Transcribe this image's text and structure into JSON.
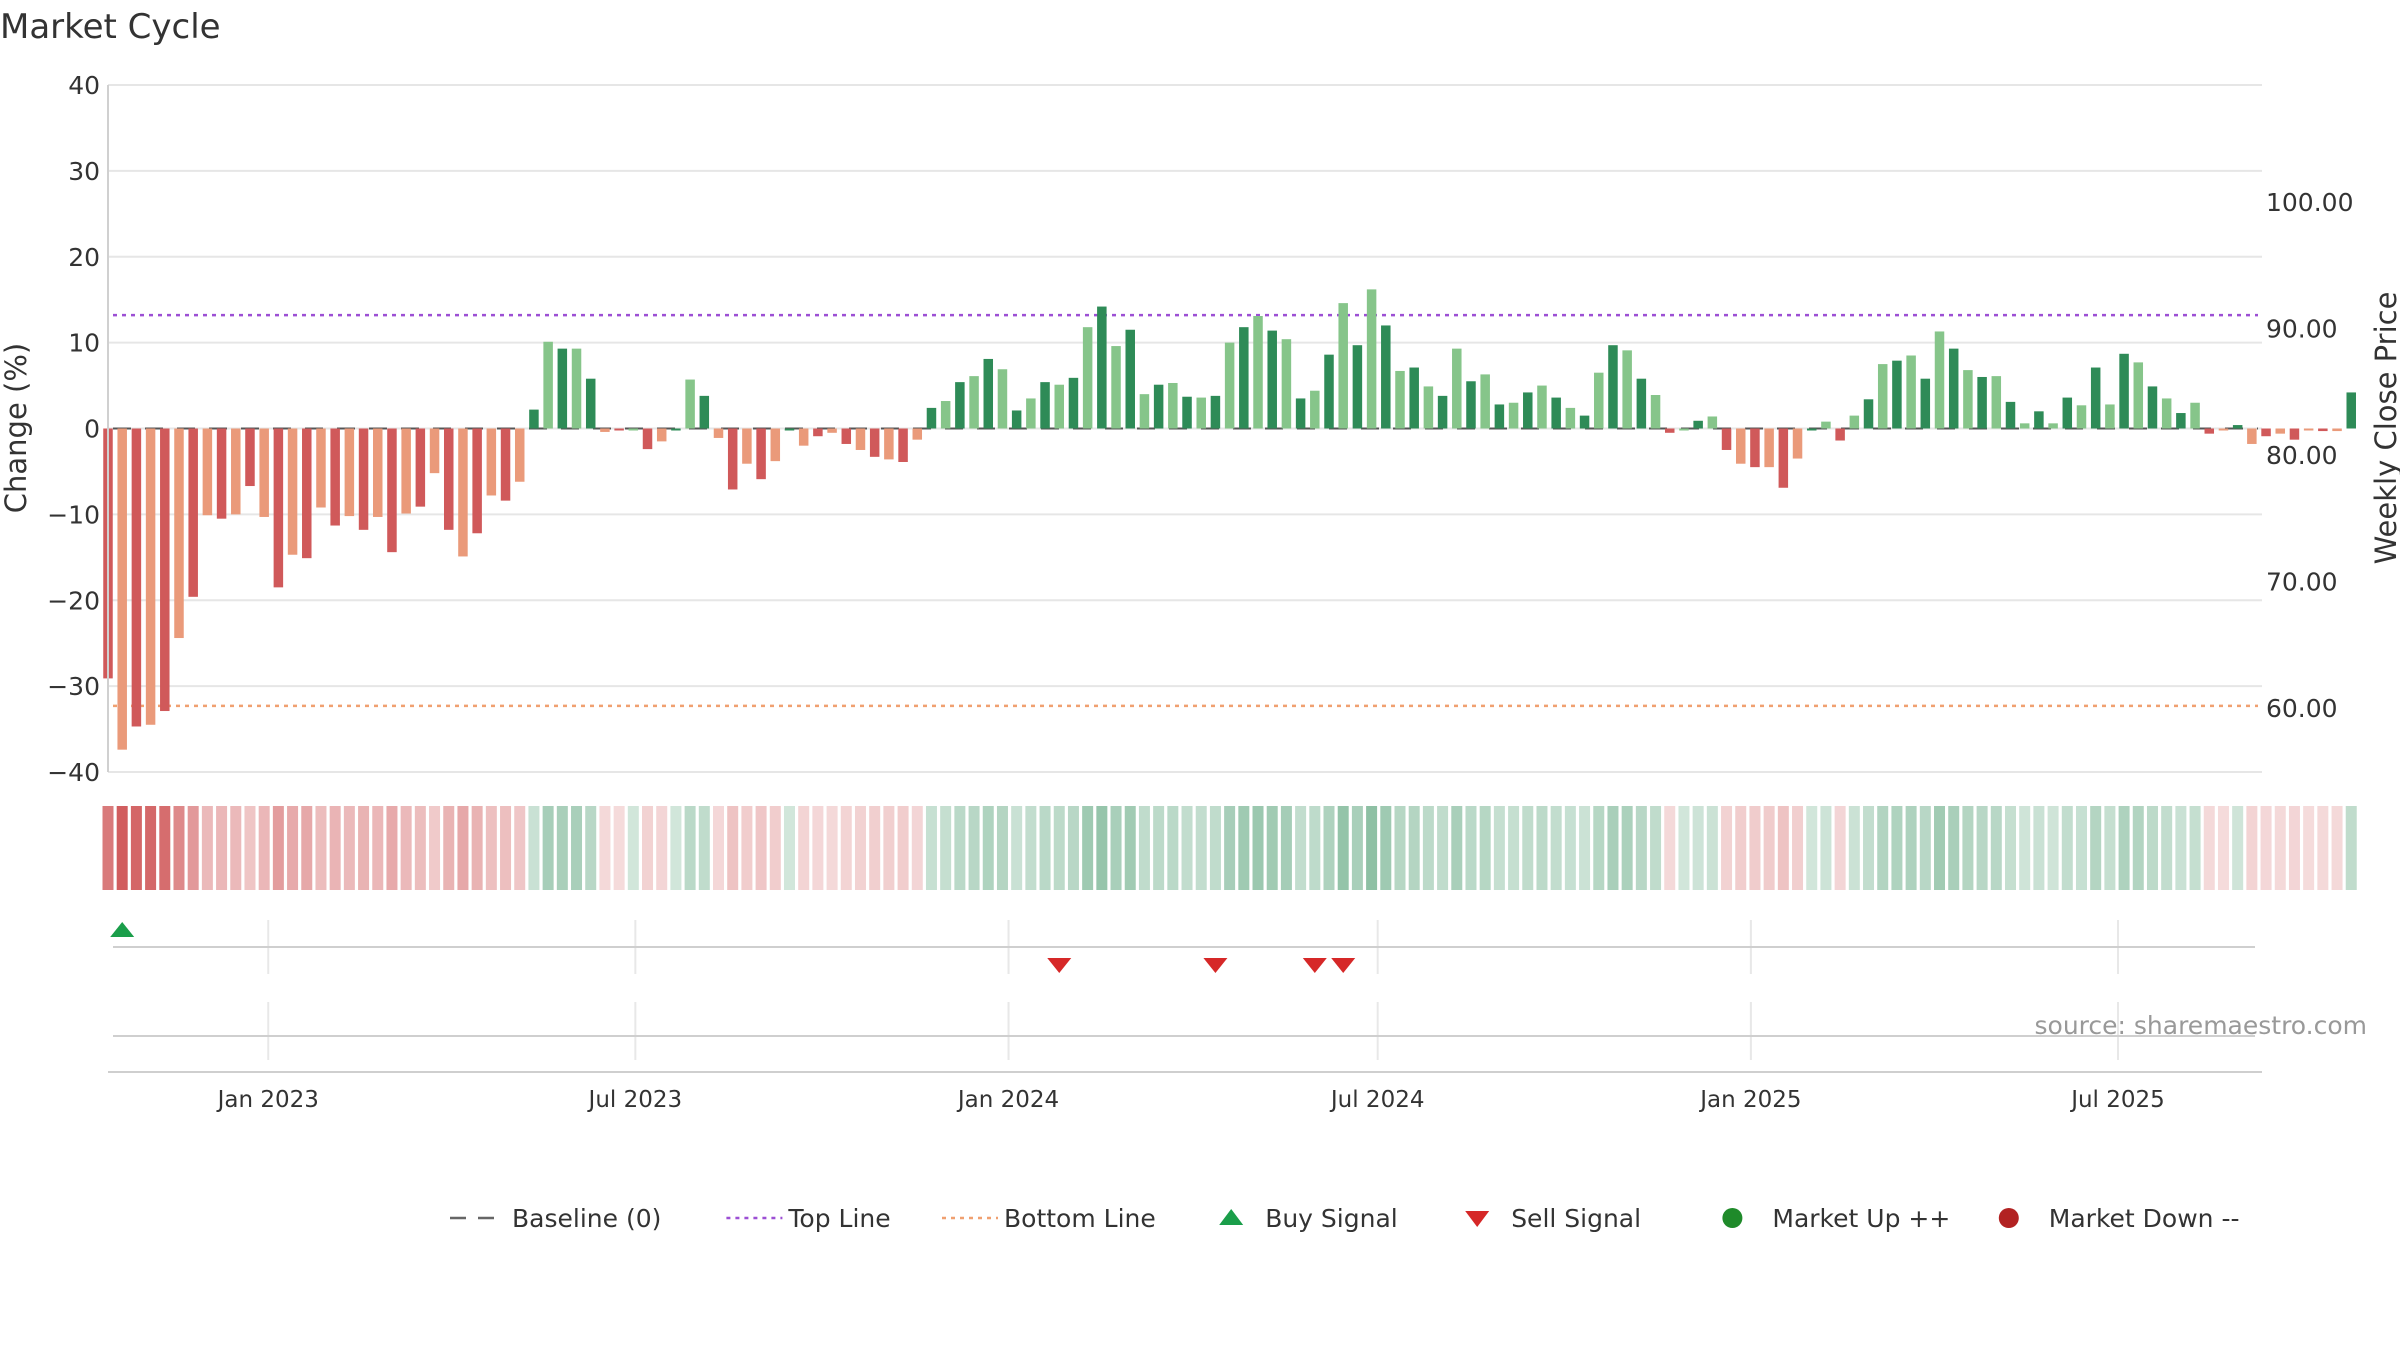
{
  "chart_data": {
    "type": "bar",
    "title": "Market Cycle",
    "ylabel": "Change (%)",
    "y2label": "Weekly Close Price",
    "ylim": [
      -40,
      40
    ],
    "y2lim": [
      55,
      110
    ],
    "yticks": [
      40,
      30,
      20,
      10,
      0,
      -10,
      -20,
      -30,
      -40
    ],
    "yticks_text": [
      "40",
      "30",
      "20",
      "10",
      "0",
      "−10",
      "−20",
      "−30",
      "−40"
    ],
    "y2ticks": [
      100,
      90,
      80,
      70,
      60
    ],
    "y2ticks_text": [
      "100.00",
      "90.00",
      "80.00",
      "70.00",
      "60.00"
    ],
    "x_start": "2022-10-14",
    "x_end": "2025-09-10",
    "x_ticks": [
      {
        "date": "2023-01-01",
        "label": "Jan 2023"
      },
      {
        "date": "2023-07-01",
        "label": "Jul 2023"
      },
      {
        "date": "2024-01-01",
        "label": "Jan 2024"
      },
      {
        "date": "2024-07-01",
        "label": "Jul 2024"
      },
      {
        "date": "2025-01-01",
        "label": "Jan 2025"
      },
      {
        "date": "2025-07-01",
        "label": "Jul 2025"
      }
    ],
    "first_bar_date": "2022-10-14",
    "bar_interval_days": 7,
    "values": [
      -29.1,
      -37.4,
      -34.7,
      -34.5,
      -32.9,
      -24.4,
      -19.6,
      -10.1,
      -10.5,
      -10,
      -6.7,
      -10.3,
      -18.5,
      -14.7,
      -15.1,
      -9.2,
      -11.3,
      -10.2,
      -11.8,
      -10.3,
      -14.4,
      -9.9,
      -9.1,
      -5.2,
      -11.8,
      -14.9,
      -12.2,
      -7.8,
      -8.4,
      -6.2,
      2.2,
      10.1,
      9.3,
      9.3,
      5.8,
      -0.4,
      -0.2,
      0,
      -2.4,
      -1.5,
      0,
      5.7,
      3.8,
      -1.1,
      -7.1,
      -4.1,
      -5.9,
      -3.8,
      0,
      -2,
      -0.9,
      -0.5,
      -1.8,
      -2.5,
      -3.3,
      -3.6,
      -3.9,
      -1.3,
      2.4,
      3.2,
      5.4,
      6.1,
      8.1,
      6.9,
      2.1,
      3.5,
      5.4,
      5.1,
      5.9,
      11.8,
      14.2,
      9.6,
      11.5,
      4,
      5.1,
      5.3,
      3.7,
      3.6,
      3.8,
      10,
      11.8,
      13.1,
      11.4,
      10.4,
      3.5,
      4.4,
      8.6,
      14.6,
      9.7,
      16.2,
      12,
      6.7,
      7.1,
      4.9,
      3.8,
      9.3,
      5.5,
      6.3,
      2.8,
      3,
      4.2,
      5,
      3.6,
      2.4,
      1.5,
      6.5,
      9.7,
      9.1,
      5.8,
      3.9,
      -0.5,
      0,
      0.9,
      1.4,
      -2.5,
      -4.1,
      -4.5,
      -4.5,
      -6.9,
      -3.5,
      0,
      0.8,
      -1.4,
      1.5,
      3.4,
      7.5,
      7.9,
      8.5,
      5.8,
      11.3,
      9.3,
      6.8,
      6,
      6.1,
      3.1,
      0.6,
      2,
      0.6,
      3.6,
      2.7,
      7.1,
      2.8,
      8.7,
      7.7,
      4.9,
      3.5,
      1.8,
      3,
      -0.6,
      -0.1,
      0.4,
      -1.8,
      -0.9,
      -0.6,
      -1.3,
      -0.2,
      -0.3,
      -0.3,
      4.2
    ],
    "reference_lines": [
      {
        "name": "Baseline (0)",
        "y": 0,
        "color": "#666666"
      },
      {
        "name": "Top Line",
        "y": 13.2,
        "color": "#9c4fd4"
      },
      {
        "name": "Bottom Line",
        "y": -32.3,
        "color": "#f0a070"
      }
    ],
    "signals": [
      {
        "type": "buy",
        "date": "2022-10-21"
      },
      {
        "type": "sell",
        "date": "2024-01-26"
      },
      {
        "type": "sell",
        "date": "2024-04-12"
      },
      {
        "type": "sell",
        "date": "2024-05-31"
      },
      {
        "type": "sell",
        "date": "2024-06-14"
      }
    ],
    "colors": {
      "positive_strong": "#2e8b57",
      "positive_light": "#86c58a",
      "negative_strong": "#d0595a",
      "negative_light": "#ea9a7a",
      "grid": "#e6e6e6",
      "buy": "#1a9e4a",
      "sell": "#d62828",
      "market_up": "#1f8a2a",
      "market_down": "#b22222"
    },
    "legend": [
      {
        "label": "Baseline (0)",
        "symbol": "dash",
        "color": "#666666"
      },
      {
        "label": "Top Line",
        "symbol": "dot",
        "color": "#9c4fd4"
      },
      {
        "label": "Bottom Line",
        "symbol": "dot",
        "color": "#f0a070"
      },
      {
        "label": "Buy Signal",
        "symbol": "triangle-up",
        "color": "#1a9e4a"
      },
      {
        "label": "Sell Signal",
        "symbol": "triangle-down",
        "color": "#d62828"
      },
      {
        "label": "Market Up ++",
        "symbol": "circle",
        "color": "#1f8a2a"
      },
      {
        "label": "Market Down --",
        "symbol": "circle",
        "color": "#b22222"
      }
    ],
    "source_text": "source: sharemaestro.com"
  }
}
